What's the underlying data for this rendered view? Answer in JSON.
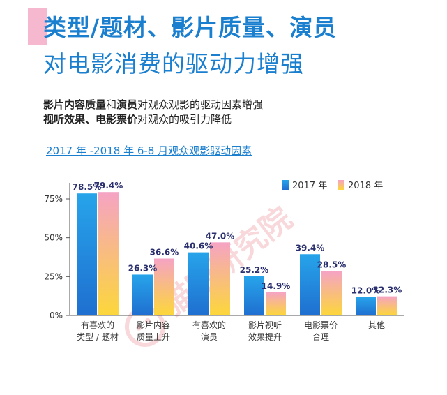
{
  "header": {
    "title_line1": "类型/题材、影片质量、演员",
    "title_line2": "对电影消费的驱动力增强"
  },
  "subtitle": {
    "line1_bold_a": "影片内容质量",
    "line1_plain_a": "和",
    "line1_bold_b": "演员",
    "line1_plain_b": "对观众观影的驱动因素增强",
    "line2_bold": "视听效果、电影票价",
    "line2_plain": "对观众的吸引力降低"
  },
  "watermark": "猫眼研究院",
  "colors": {
    "s2017_top": "#27a4ea",
    "s2017_bottom": "#1f6fd0",
    "s2018_top": "#f5a3c4",
    "s2018_bottom": "#fcd73a",
    "title_blue": "#1a7fcf",
    "label_navy": "#2a2f6e"
  },
  "chart_data": {
    "type": "bar",
    "title": "2017 年 -2018 年 6-8 月观众观影驱动因素",
    "categories": [
      [
        "有喜欢的",
        "类型 / 题材"
      ],
      [
        "影片内容",
        "质量上升"
      ],
      [
        "有喜欢的",
        "演员"
      ],
      [
        "影片视听",
        "效果提升"
      ],
      [
        "电影票价",
        "合理"
      ],
      [
        "其他"
      ]
    ],
    "series": [
      {
        "name": "2017 年",
        "values": [
          78.5,
          26.3,
          40.6,
          25.2,
          39.4,
          12.0
        ],
        "labels": [
          "78.5%",
          "26.3%",
          "40.6%",
          "25.2%",
          "39.4%",
          "12.0%"
        ]
      },
      {
        "name": "2018 年",
        "values": [
          79.4,
          36.6,
          47.0,
          14.9,
          28.5,
          12.3
        ],
        "labels": [
          "79.4%",
          "36.6%",
          "47.0%",
          "14.9%",
          "28.5%",
          "12.3%"
        ]
      }
    ],
    "yticks": [
      0,
      25,
      50,
      75
    ],
    "ytick_labels": [
      "0%",
      "25%",
      "50%",
      "75%"
    ],
    "ylim": [
      0,
      90
    ],
    "legend_position": "top-right"
  }
}
